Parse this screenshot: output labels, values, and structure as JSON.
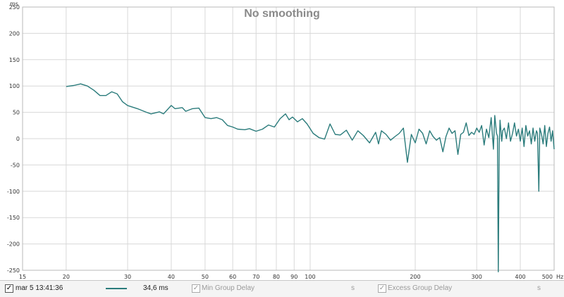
{
  "chart_data": {
    "type": "line",
    "title": "No smoothing",
    "y_unit": "ms",
    "x_unit": "Hz",
    "xscale": "log",
    "xlim": [
      15,
      500
    ],
    "ylim": [
      -250,
      250
    ],
    "grid": true,
    "x_ticks": [
      15,
      20,
      30,
      40,
      50,
      60,
      70,
      80,
      90,
      100,
      200,
      300,
      400,
      500
    ],
    "x_tick_labels": [
      "15",
      "20",
      "30",
      "40",
      "50",
      "60",
      "70",
      "80",
      "90",
      "100",
      "200",
      "300",
      "400",
      "500"
    ],
    "y_ticks": [
      250,
      200,
      150,
      100,
      50,
      0,
      -50,
      -100,
      -150,
      -200,
      -250
    ],
    "y_tick_labels": [
      "250",
      "200",
      "150",
      "100",
      "50",
      "0",
      "-50",
      "-100",
      "-150",
      "-200",
      "-250"
    ],
    "series": [
      {
        "name": "mar 5 13:41:36",
        "color": "#2a7b7b",
        "x": [
          20,
          21,
          22,
          23,
          24,
          25,
          26,
          27,
          28,
          29,
          30,
          32,
          34,
          35,
          37,
          38,
          40,
          41,
          43,
          44,
          46,
          48,
          50,
          52,
          54,
          56,
          58,
          60,
          62,
          65,
          67,
          70,
          73,
          76,
          79,
          82,
          85,
          87,
          89,
          92,
          95,
          98,
          102,
          106,
          110,
          114,
          118,
          122,
          127,
          132,
          137,
          142,
          148,
          154,
          157,
          160,
          165,
          170,
          175,
          180,
          185,
          190,
          195,
          200,
          205,
          210,
          215,
          220,
          225,
          230,
          235,
          240,
          245,
          250,
          255,
          260,
          265,
          270,
          275,
          280,
          285,
          290,
          295,
          300,
          305,
          310,
          315,
          320,
          325,
          330,
          335,
          338,
          342,
          344,
          346,
          348,
          350,
          352,
          354,
          356,
          360,
          365,
          370,
          375,
          380,
          385,
          390,
          395,
          400,
          405,
          410,
          415,
          420,
          425,
          430,
          435,
          440,
          445,
          448,
          452,
          455,
          460,
          465,
          470,
          475,
          480,
          485,
          490,
          495,
          500
        ],
        "y": [
          99,
          101,
          104,
          100,
          92,
          82,
          82,
          89,
          85,
          70,
          63,
          57,
          50,
          47,
          51,
          47,
          63,
          57,
          59,
          52,
          57,
          58,
          40,
          38,
          40,
          36,
          25,
          22,
          18,
          17,
          19,
          14,
          18,
          26,
          22,
          38,
          47,
          36,
          41,
          32,
          38,
          28,
          10,
          2,
          -1,
          28,
          8,
          7,
          16,
          -3,
          15,
          6,
          -8,
          12,
          -10,
          15,
          8,
          -3,
          4,
          10,
          20,
          -45,
          8,
          -8,
          18,
          10,
          -10,
          15,
          4,
          -3,
          2,
          -25,
          4,
          20,
          10,
          15,
          -30,
          8,
          12,
          30,
          6,
          12,
          8,
          20,
          12,
          25,
          -12,
          18,
          2,
          40,
          -20,
          44,
          10,
          5,
          -253,
          -10,
          35,
          15,
          -5,
          15,
          20,
          0,
          30,
          -5,
          10,
          30,
          5,
          18,
          -5,
          20,
          -15,
          25,
          5,
          15,
          -10,
          20,
          -5,
          15,
          10,
          -100,
          20,
          8,
          -10,
          25,
          -15,
          10,
          22,
          -5,
          15,
          -20
        ]
      }
    ]
  },
  "legend": {
    "checkbox_mark": "✓",
    "series_label": "mar 5 13:41:36",
    "value": "34,6 ms",
    "min_group_delay_label": "Min Group Delay",
    "min_group_delay_unit": "s",
    "excess_group_delay_label": "Excess Group Delay",
    "excess_group_delay_unit": "s"
  }
}
